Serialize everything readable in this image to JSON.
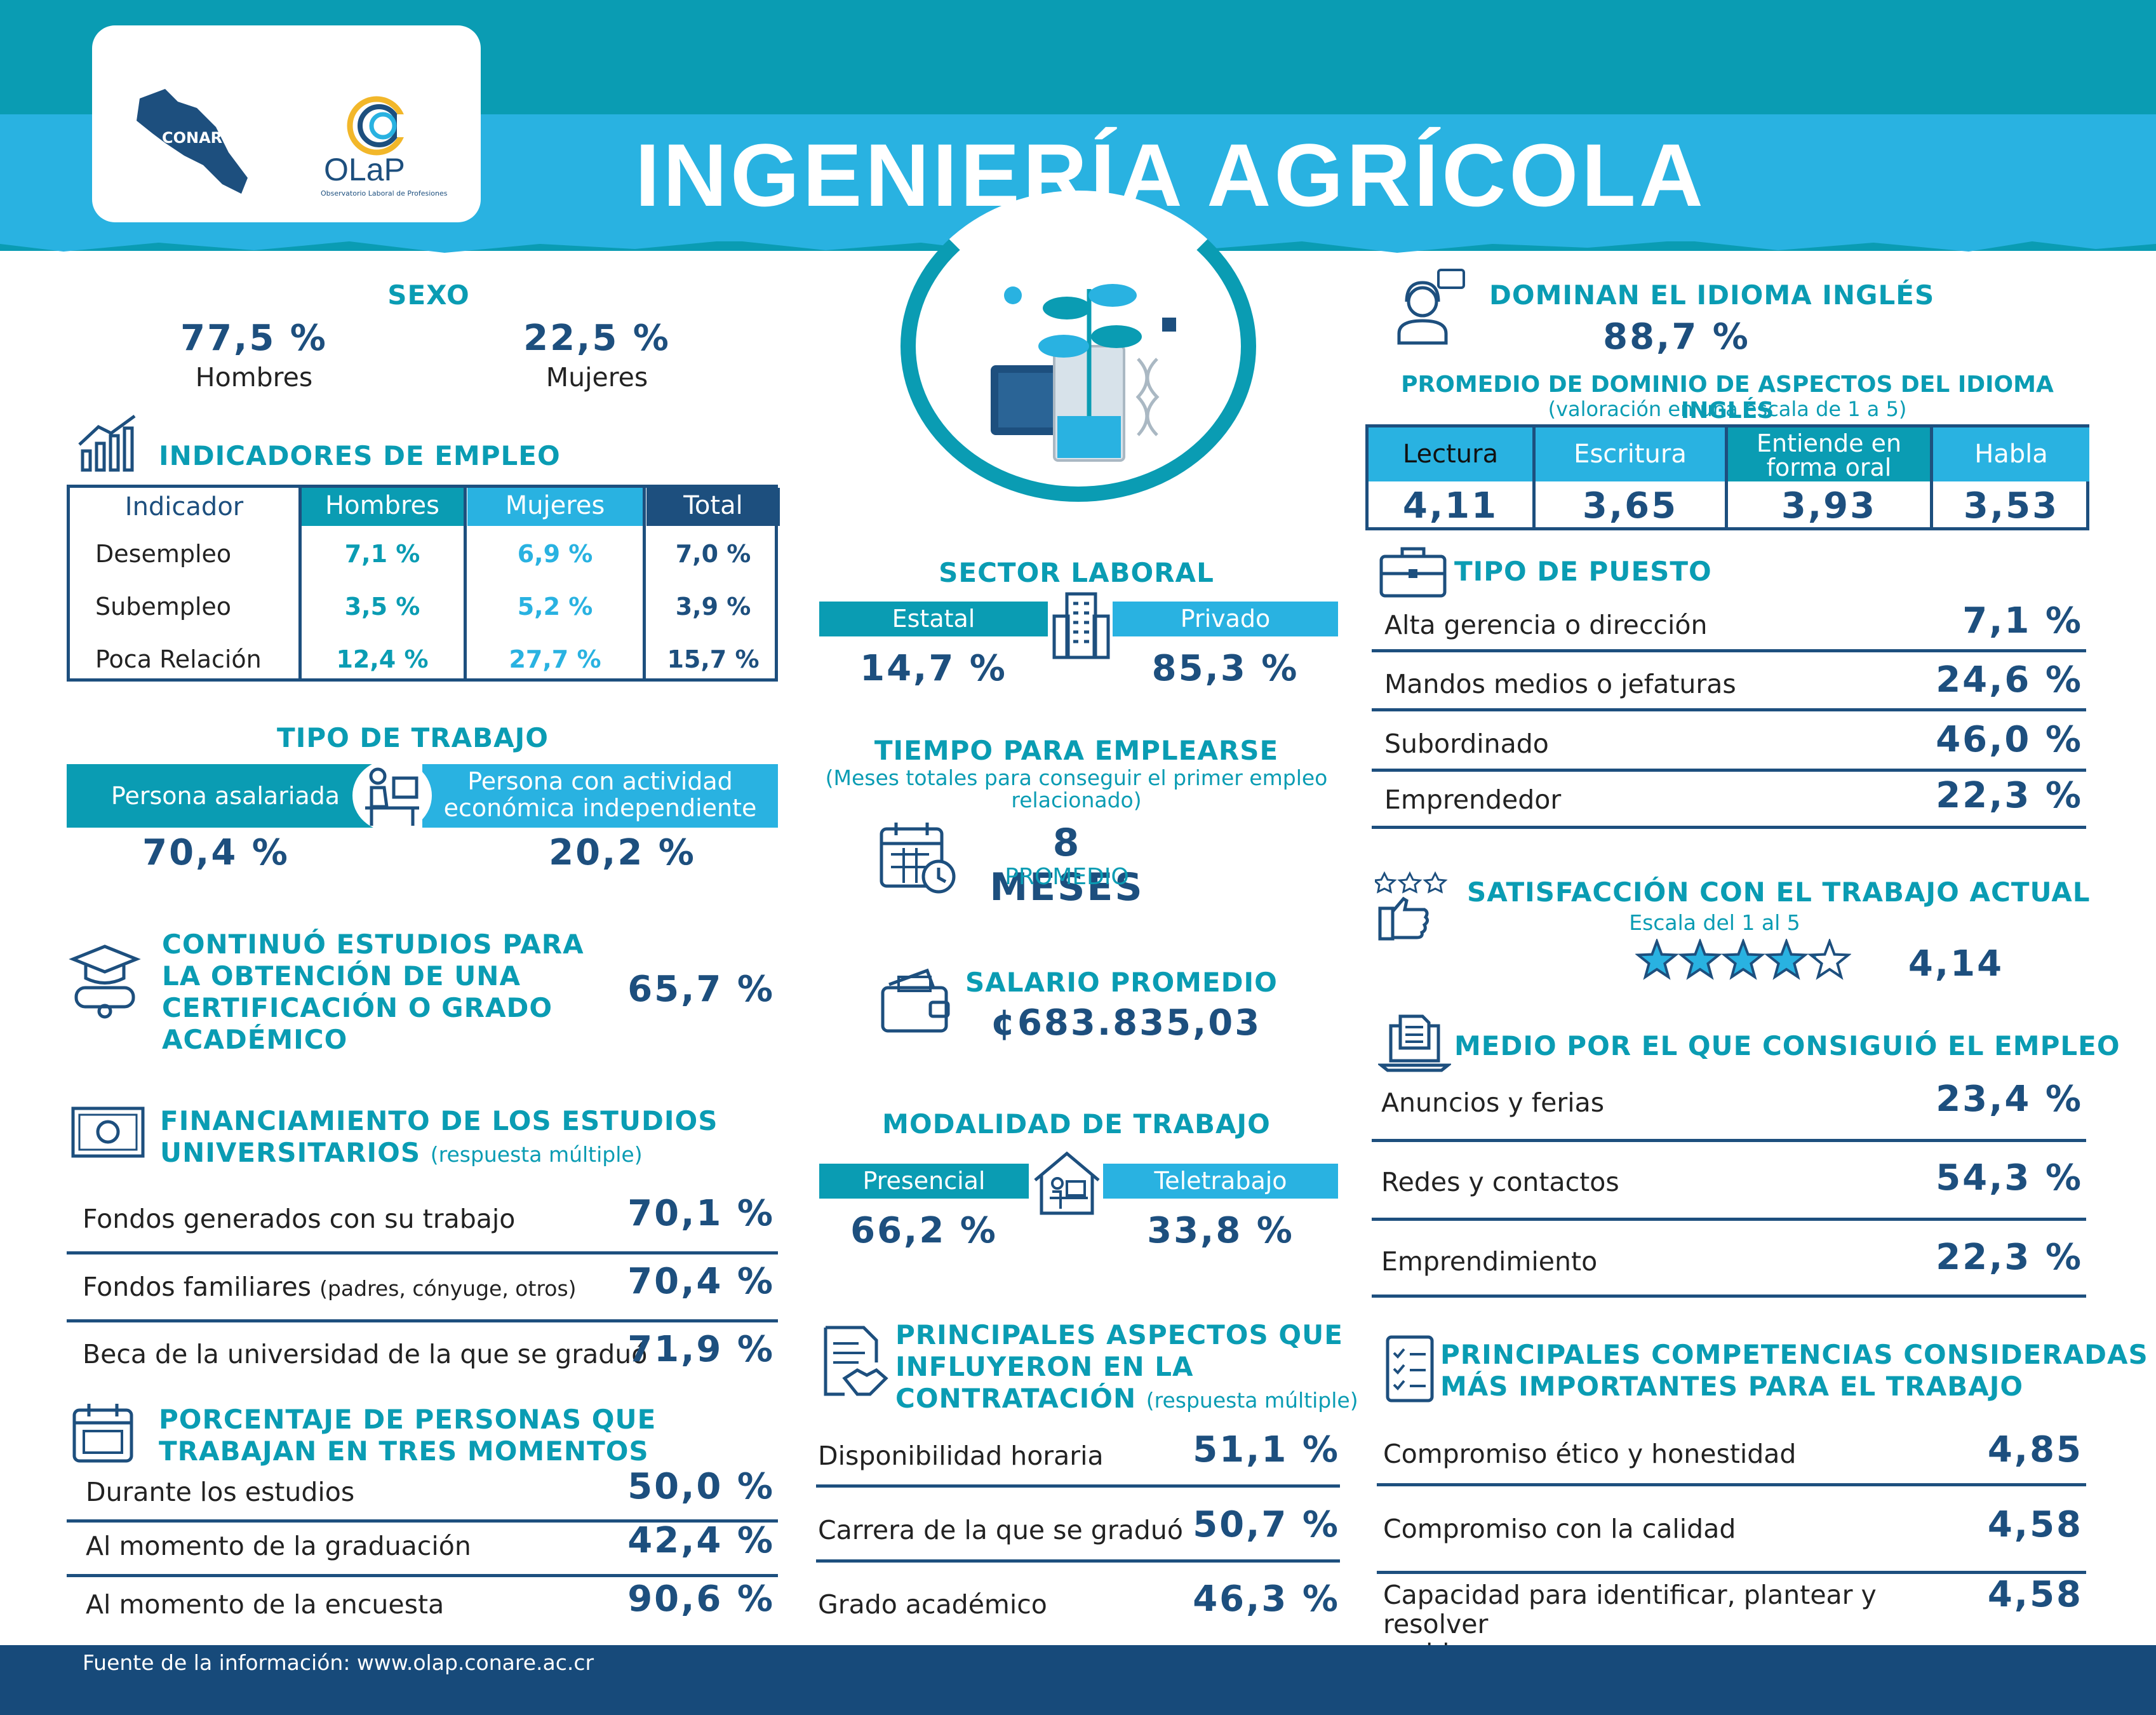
{
  "header": {
    "title": "INGENIERÍA AGRÍCOLA",
    "conare": "CONARE",
    "olap": "OLaP",
    "olap_sub": "Observatorio Laboral de Profesiones"
  },
  "colors": {
    "teal": "#0a9cb3",
    "light_blue": "#29b2e1",
    "navy": "#1d4f7e",
    "dark_footer": "#174a7a"
  },
  "sexo": {
    "title": "SEXO",
    "hombres_value": "77,5 %",
    "hombres_label": "Hombres",
    "mujeres_value": "22,5 %",
    "mujeres_label": "Mujeres"
  },
  "empleo": {
    "title": "INDICADORES DE EMPLEO",
    "headers": [
      "Indicador",
      "Hombres",
      "Mujeres",
      "Total"
    ],
    "rows": [
      [
        "Desempleo",
        "7,1 %",
        "6,9 %",
        "7,0 %"
      ],
      [
        "Subempleo",
        "3,5 %",
        "5,2 %",
        "3,9 %"
      ],
      [
        "Poca Relación",
        "12,4 %",
        "27,7 %",
        "15,7 %"
      ]
    ]
  },
  "tipo_trabajo": {
    "title": "TIPO DE TRABAJO",
    "left_label": "Persona asalariada",
    "right_label_1": "Persona con actividad",
    "right_label_2": "económica independiente",
    "left_value": "70,4 %",
    "right_value": "20,2 %"
  },
  "estudios": {
    "title_1": "CONTINUÓ ESTUDIOS PARA",
    "title_2": "LA OBTENCIÓN DE UNA",
    "title_3": "CERTIFICACIÓN O GRADO",
    "title_4": "ACADÉMICO",
    "value": "65,7 %"
  },
  "financiamiento": {
    "title_1": "FINANCIAMIENTO DE LOS ESTUDIOS",
    "title_2": "UNIVERSITARIOS",
    "note": "(respuesta múltiple)",
    "rows": [
      {
        "label": "Fondos generados con su trabajo",
        "extra": "",
        "value": "70,1 %"
      },
      {
        "label": "Fondos familiares",
        "extra": "(padres, cónyuge, otros)",
        "value": "70,4 %"
      },
      {
        "label": "Beca de la universidad de la que se graduó",
        "extra": "",
        "value": "71,9 %"
      }
    ]
  },
  "momentos": {
    "title_1": "PORCENTAJE DE PERSONAS QUE",
    "title_2": "TRABAJAN EN TRES MOMENTOS",
    "rows": [
      {
        "label": "Durante los estudios",
        "value": "50,0 %"
      },
      {
        "label": "Al momento de la graduación",
        "value": "42,4 %"
      },
      {
        "label": "Al momento de la encuesta",
        "value": "90,6 %"
      }
    ]
  },
  "sector": {
    "title": "SECTOR LABORAL",
    "left_label": "Estatal",
    "right_label": "Privado",
    "left_value": "14,7 %",
    "right_value": "85,3 %"
  },
  "tiempo": {
    "title": "TIEMPO PARA EMPLEARSE",
    "sub_1": "(Meses totales para conseguir el primer empleo",
    "sub_2": "relacionado)",
    "value": "8 MESES",
    "value_label": "PROMEDIO"
  },
  "salario": {
    "title": "SALARIO PROMEDIO",
    "value": "¢683.835,03"
  },
  "modalidad": {
    "title": "MODALIDAD DE TRABAJO",
    "left_label": "Presencial",
    "right_label": "Teletrabajo",
    "left_value": "66,2 %",
    "right_value": "33,8 %"
  },
  "aspectos": {
    "title_1": "PRINCIPALES ASPECTOS QUE",
    "title_2": "INFLUYERON EN LA",
    "title_3": "CONTRATACIÓN",
    "note": "(respuesta múltiple)",
    "rows": [
      {
        "label": "Disponibilidad horaria",
        "value": "51,1 %"
      },
      {
        "label": "Carrera de la que se graduó",
        "value": "50,7 %"
      },
      {
        "label": "Grado académico",
        "value": "46,3 %"
      }
    ]
  },
  "ingles": {
    "title": "DOMINAN EL IDIOMA INGLÉS",
    "value": "88,7 %",
    "sub_title": "PROMEDIO DE DOMINIO DE ASPECTOS DEL IDIOMA INGLÉS",
    "sub_note": "(valoración en una escala de 1 a 5)",
    "headers": [
      "Lectura",
      "Escritura",
      "Entiende en forma oral",
      "Habla"
    ],
    "values": [
      "4,11",
      "3,65",
      "3,93",
      "3,53"
    ]
  },
  "puesto": {
    "title": "TIPO DE PUESTO",
    "rows": [
      {
        "label": "Alta gerencia o dirección",
        "value": "7,1 %"
      },
      {
        "label": "Mandos medios o jefaturas",
        "value": "24,6 %"
      },
      {
        "label": "Subordinado",
        "value": "46,0 %"
      },
      {
        "label": "Emprendedor",
        "value": "22,3 %"
      }
    ]
  },
  "satisfaccion": {
    "title": "SATISFACCIÓN CON EL TRABAJO ACTUAL",
    "scale": "Escala del 1 al 5",
    "value": "4,14",
    "stars_filled": 4.14,
    "stars_total": 5
  },
  "medio": {
    "title": "MEDIO POR EL QUE CONSIGUIÓ EL EMPLEO",
    "rows": [
      {
        "label": "Anuncios y ferias",
        "value": "23,4 %"
      },
      {
        "label": "Redes y contactos",
        "value": "54,3 %"
      },
      {
        "label": "Emprendimiento",
        "value": "22,3 %"
      }
    ]
  },
  "competencias": {
    "title_1": "PRINCIPALES COMPETENCIAS CONSIDERADAS",
    "title_2": "MÁS IMPORTANTES PARA EL TRABAJO",
    "rows": [
      {
        "label": "Compromiso ético y honestidad",
        "value": "4,85"
      },
      {
        "label": "Compromiso con la calidad",
        "value": "4,58"
      },
      {
        "label": "Capacidad para identificar, plantear y resolver",
        "label_2": "problemas",
        "value": "4,58"
      }
    ]
  },
  "footer": {
    "source": "Fuente de la información: www.olap.conare.ac.cr"
  }
}
